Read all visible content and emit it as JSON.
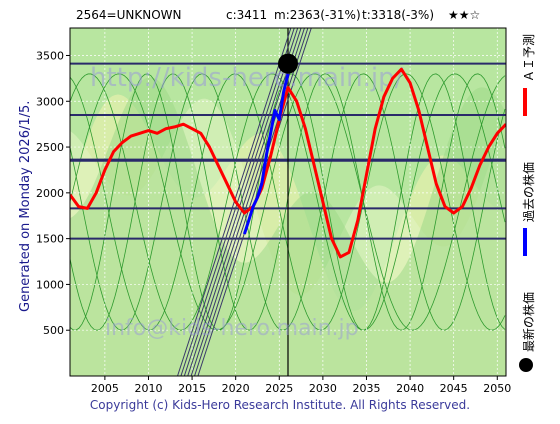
{
  "header": {
    "ticker": "2564=UNKNOWN",
    "current": "c:3411",
    "min": "m:2363(-31%)",
    "target": "t:3318(-3%)",
    "stars": "★★☆"
  },
  "side_label": "Generated on Monday 2026/1/5.",
  "watermark_top": "http://kids-hero.main.jp/",
  "watermark_bottom": "info@kids-hero.main.jp",
  "legend": {
    "forecast": "ＡＩ予測",
    "past": "過去の株価",
    "latest": "最新の株価",
    "forecast_color": "#ff0000",
    "past_color": "#0000ff",
    "latest_color": "#000000"
  },
  "copyright": "Copyright (c) Kids-Hero Research Institute. All Rights Reserved.",
  "chart_data": {
    "type": "line",
    "xlim": [
      2001,
      2051
    ],
    "ylim": [
      0,
      3800
    ],
    "x_ticks": [
      2005,
      2010,
      2015,
      2020,
      2025,
      2030,
      2035,
      2040,
      2045,
      2050
    ],
    "y_ticks": [
      500,
      1000,
      1500,
      2000,
      2500,
      3000,
      3500
    ],
    "horizontal_levels": [
      3411,
      2850,
      2363,
      2350,
      1830,
      1500
    ],
    "current_year_marker": 2026,
    "latest_point": {
      "x": 2026.0,
      "y": 3411
    },
    "series": [
      {
        "name": "ＡＩ予測",
        "color": "#ff0000",
        "x": [
          2001,
          2002,
          2003,
          2004,
          2005,
          2006,
          2007,
          2008,
          2009,
          2010,
          2011,
          2012,
          2013,
          2014,
          2015,
          2016,
          2017,
          2018,
          2019,
          2020,
          2021,
          2022,
          2023,
          2024,
          2025,
          2026,
          2027,
          2028,
          2029,
          2030,
          2031,
          2032,
          2033,
          2034,
          2035,
          2036,
          2037,
          2038,
          2039,
          2040,
          2041,
          2042,
          2043,
          2044,
          2045,
          2046,
          2047,
          2048,
          2049,
          2050,
          2051
        ],
        "y": [
          1980,
          1850,
          1830,
          2000,
          2250,
          2450,
          2550,
          2620,
          2650,
          2680,
          2650,
          2700,
          2720,
          2750,
          2700,
          2650,
          2500,
          2300,
          2100,
          1900,
          1780,
          1850,
          2050,
          2400,
          2800,
          3150,
          3000,
          2700,
          2300,
          1900,
          1500,
          1300,
          1350,
          1700,
          2200,
          2700,
          3050,
          3250,
          3350,
          3200,
          2900,
          2500,
          2100,
          1850,
          1780,
          1850,
          2050,
          2300,
          2500,
          2650,
          2750
        ]
      },
      {
        "name": "過去の株価",
        "color": "#0000ff",
        "x": [
          2021.0,
          2021.5,
          2022.0,
          2022.5,
          2023.0,
          2023.5,
          2024.0,
          2024.5,
          2025.0,
          2025.5,
          2026.0
        ],
        "y": [
          1550,
          1700,
          1850,
          1950,
          2100,
          2400,
          2650,
          2900,
          2800,
          3100,
          3300
        ]
      }
    ]
  }
}
